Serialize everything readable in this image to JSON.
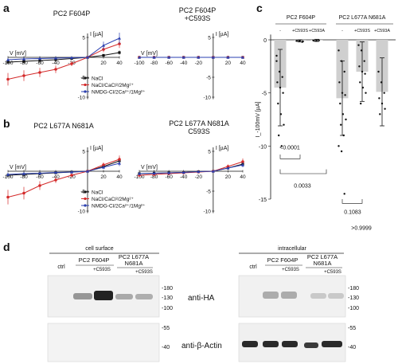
{
  "panels": {
    "a": {
      "letter": "a",
      "left_title": "PC2 F604P",
      "right_title_line1": "PC2 F604P",
      "right_title_line2": "+C593S"
    },
    "b": {
      "letter": "b",
      "left_title": "PC2 L677A N681A",
      "right_title_line1": "PC2 L677A N681A",
      "right_title_line2": "C593S"
    },
    "c": {
      "letter": "c"
    },
    "d": {
      "letter": "d"
    }
  },
  "iv": {
    "y_label": "I [µA]",
    "x_label": "V [mV]",
    "x_ticks": [
      "-100",
      "-80",
      "-60",
      "-40",
      "-20",
      "20",
      "40"
    ],
    "y_ticks_a": [
      "5",
      "-5",
      "-10"
    ],
    "y_ticks_b": [
      "5",
      "-5",
      "-10"
    ],
    "legend": [
      {
        "label": "NaCl",
        "color": "#111111"
      },
      {
        "label": "NaCl/CaCl²/2Mg²⁺",
        "color": "#d42a2a"
      },
      {
        "label": "NMDG-Cl/2Ca²⁺/1Mg²⁺",
        "color": "#2a3fb0"
      }
    ]
  },
  "chart_data": [
    {
      "type": "line",
      "title": "PC2 F604P",
      "xlabel": "V [mV]",
      "ylabel": "I [µA]",
      "ylim": [
        -10,
        6
      ],
      "x": [
        -100,
        -80,
        -60,
        -40,
        -20,
        0,
        20,
        40
      ],
      "series": [
        {
          "name": "NaCl",
          "values": [
            -1.2,
            -1.0,
            -0.8,
            -0.6,
            -0.3,
            0.0,
            0.5,
            1.2
          ]
        },
        {
          "name": "NaCl/CaCl²/2Mg²⁺",
          "values": [
            -5.5,
            -4.6,
            -3.8,
            -3.0,
            -1.6,
            0.0,
            2.0,
            3.4
          ]
        },
        {
          "name": "NMDG-Cl/2Ca²⁺/1Mg²⁺",
          "values": [
            -0.6,
            -0.4,
            -0.3,
            -0.2,
            -0.1,
            0.0,
            3.0,
            4.8
          ]
        }
      ]
    },
    {
      "type": "line",
      "title": "PC2 F604P +C593S",
      "xlabel": "V [mV]",
      "ylabel": "I [µA]",
      "ylim": [
        -10,
        6
      ],
      "x": [
        -100,
        -80,
        -60,
        -40,
        -20,
        0,
        20,
        40
      ],
      "series": [
        {
          "name": "NaCl",
          "values": [
            0,
            0,
            0,
            0,
            0,
            0,
            0,
            0
          ]
        },
        {
          "name": "NaCl/CaCl²/2Mg²⁺",
          "values": [
            0,
            0,
            0,
            0,
            0,
            0,
            0,
            0
          ]
        },
        {
          "name": "NMDG-Cl/2Ca²⁺/1Mg²⁺",
          "values": [
            0,
            0,
            0,
            0,
            0,
            0,
            0,
            0
          ]
        }
      ]
    },
    {
      "type": "line",
      "title": "PC2 L677A N681A",
      "xlabel": "V [mV]",
      "ylabel": "I [µA]",
      "ylim": [
        -10,
        6
      ],
      "x": [
        -100,
        -80,
        -60,
        -40,
        -20,
        0,
        20,
        40
      ],
      "series": [
        {
          "name": "NaCl",
          "values": [
            -1.0,
            -0.8,
            -0.6,
            -0.4,
            -0.2,
            0.0,
            1.2,
            2.6
          ]
        },
        {
          "name": "NaCl/CaCl²/2Mg²⁺",
          "values": [
            -6.5,
            -5.5,
            -3.6,
            -2.2,
            -1.0,
            0.0,
            1.6,
            3.0
          ]
        },
        {
          "name": "NMDG-Cl/2Ca²⁺/1Mg²⁺",
          "values": [
            -0.8,
            -0.6,
            -0.5,
            -0.3,
            -0.2,
            0.0,
            1.0,
            2.0
          ]
        }
      ]
    },
    {
      "type": "line",
      "title": "PC2 L677A N681A C593S",
      "xlabel": "V [mV]",
      "ylabel": "I [µA]",
      "ylim": [
        -10,
        6
      ],
      "x": [
        -100,
        -80,
        -60,
        -40,
        -20,
        0,
        20,
        40
      ],
      "series": [
        {
          "name": "NaCl",
          "values": [
            -0.6,
            -0.5,
            -0.4,
            -0.3,
            -0.1,
            0.0,
            0.8,
            1.8
          ]
        },
        {
          "name": "NaCl/CaCl²/2Mg²⁺",
          "values": [
            -1.0,
            -0.8,
            -0.6,
            -0.4,
            -0.2,
            0.0,
            1.2,
            2.4
          ]
        },
        {
          "name": "NMDG-Cl/2Ca²⁺/1Mg²⁺",
          "values": [
            -0.6,
            -0.5,
            -0.4,
            -0.3,
            -0.1,
            0.0,
            0.8,
            1.6
          ]
        }
      ]
    },
    {
      "type": "bar",
      "ylabel": "I_-100mV [µA]",
      "ylim": [
        -15,
        1
      ],
      "groups": [
        "PC2 F604P",
        "PC2 L677A N681A"
      ],
      "categories": [
        "-",
        "+C593S",
        "+C593A",
        "-",
        "+C593S",
        "+C593A"
      ],
      "values": [
        -4.5,
        -0.1,
        -0.05,
        -5.5,
        -3.0,
        -4.9
      ],
      "errors": [
        3.6,
        0.1,
        0.1,
        3.5,
        2.8,
        3.2
      ],
      "points": [
        [
          -2,
          -3,
          -3.5,
          -4,
          -4.5,
          -5,
          -6,
          -7,
          -8,
          -9,
          -10,
          -1.5
        ],
        [
          -0.1,
          -0.1,
          -0.2,
          -0.1,
          -0.05,
          -0.15
        ],
        [
          -0.05,
          -0.1,
          -0.05,
          -0.08,
          -0.1
        ],
        [
          -1,
          -2,
          -3,
          -4,
          -5,
          -5.2,
          -6,
          -7,
          -7.5,
          -8,
          -9,
          -10,
          -10.5,
          -14.5
        ],
        [
          -0.5,
          -1,
          -2,
          -2.5,
          -3,
          -3.2,
          -4,
          -4.5,
          -5,
          -6
        ],
        [
          -3,
          -4,
          -5,
          -5.5,
          -6,
          -6.5,
          -7
        ]
      ],
      "stats": [
        {
          "label": "<0.0001"
        },
        {
          "label": "0.0033"
        },
        {
          "label": "0.1083"
        },
        {
          "label": ">0.9999"
        }
      ],
      "y_ticks": [
        "0",
        "-5",
        "-10",
        "-15"
      ]
    }
  ],
  "blot": {
    "left_title": "cell surface",
    "right_title": "intracellular",
    "lane_ctrl": "ctrl",
    "group1": "PC2 F604P",
    "group2_line1": "PC2 L677A",
    "group2_line2": "N681A",
    "c593s": "+C593S",
    "c593s_short": "+C593S",
    "markers_top": [
      "-180",
      "-130",
      "-100"
    ],
    "markers_bottom": [
      "-55",
      "-40"
    ],
    "antibody_ha": "anti-HA",
    "antibody_actin": "anti-β-Actin"
  }
}
